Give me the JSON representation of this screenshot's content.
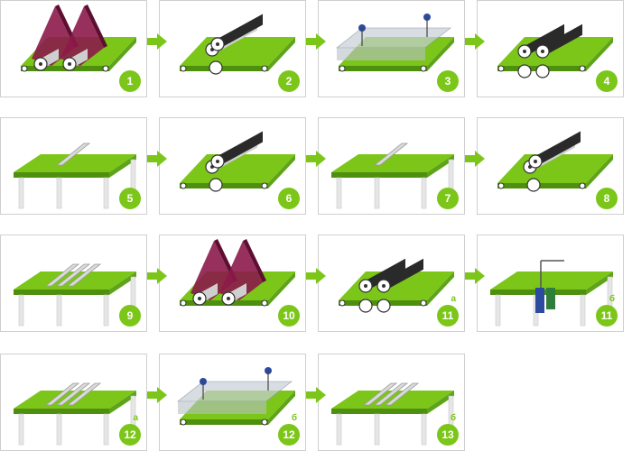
{
  "colors": {
    "accent": "#7cc61a",
    "belt": "#7cc61a",
    "roller": "#2a2a2a",
    "fabric": "#8c1a4a",
    "frame": "#e6e6e6"
  },
  "steps": [
    {
      "number": "1",
      "suffix": "",
      "illustration": "fabric-rolls"
    },
    {
      "number": "2",
      "suffix": "",
      "illustration": "roller-pair"
    },
    {
      "number": "3",
      "suffix": "",
      "illustration": "glue-station"
    },
    {
      "number": "4",
      "suffix": "",
      "illustration": "roller-double"
    },
    {
      "number": "5",
      "suffix": "",
      "illustration": "table-single-bar"
    },
    {
      "number": "6",
      "suffix": "",
      "illustration": "roller-pair"
    },
    {
      "number": "7",
      "suffix": "",
      "illustration": "table-single-bar"
    },
    {
      "number": "8",
      "suffix": "",
      "illustration": "roller-pair"
    },
    {
      "number": "9",
      "suffix": "",
      "illustration": "table-triple-bar"
    },
    {
      "number": "10",
      "suffix": "",
      "illustration": "fabric-rolls"
    },
    {
      "number": "11",
      "suffix": "a",
      "illustration": "roller-double"
    },
    {
      "number": "11",
      "suffix": "б",
      "illustration": "table-dispenser"
    },
    {
      "number": "12",
      "suffix": "a",
      "illustration": "table-triple-bar"
    },
    {
      "number": "12",
      "suffix": "б",
      "illustration": "glue-station"
    },
    {
      "number": "13",
      "suffix": "б",
      "illustration": "table-triple-bar"
    }
  ]
}
